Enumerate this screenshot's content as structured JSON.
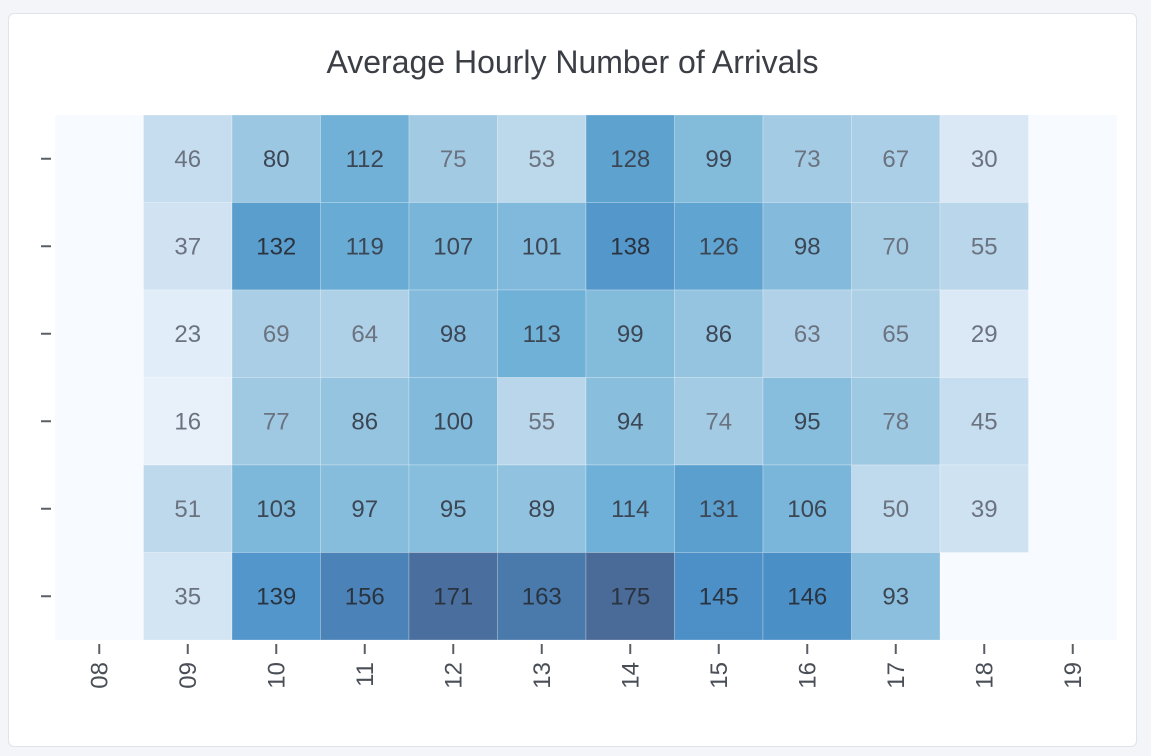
{
  "chart_data": {
    "type": "heatmap",
    "title": "Average Hourly Number of Arrivals",
    "xlabel": "",
    "ylabel": "",
    "x": [
      "08",
      "09",
      "10",
      "11",
      "12",
      "13",
      "14",
      "15",
      "16",
      "17",
      "18",
      "19"
    ],
    "y": [
      "",
      "",
      "",
      "",
      "",
      ""
    ],
    "values": [
      [
        null,
        46,
        80,
        112,
        75,
        53,
        128,
        99,
        73,
        67,
        30,
        null
      ],
      [
        null,
        37,
        132,
        119,
        107,
        101,
        138,
        126,
        98,
        70,
        55,
        null
      ],
      [
        null,
        23,
        69,
        64,
        98,
        113,
        99,
        86,
        63,
        65,
        29,
        null
      ],
      [
        null,
        16,
        77,
        86,
        100,
        55,
        94,
        74,
        95,
        78,
        45,
        null
      ],
      [
        null,
        51,
        103,
        97,
        95,
        89,
        114,
        131,
        106,
        50,
        39,
        null
      ],
      [
        null,
        35,
        139,
        156,
        171,
        163,
        175,
        145,
        146,
        93,
        null,
        null
      ]
    ],
    "colorscale": [
      "#f7fbff",
      "#dbe9f6",
      "#b5d4e9",
      "#93c3df",
      "#6aaed6",
      "#4b8fc7",
      "#4a6a98"
    ],
    "value_range": [
      0,
      175
    ],
    "grid": false,
    "legend": "none"
  }
}
